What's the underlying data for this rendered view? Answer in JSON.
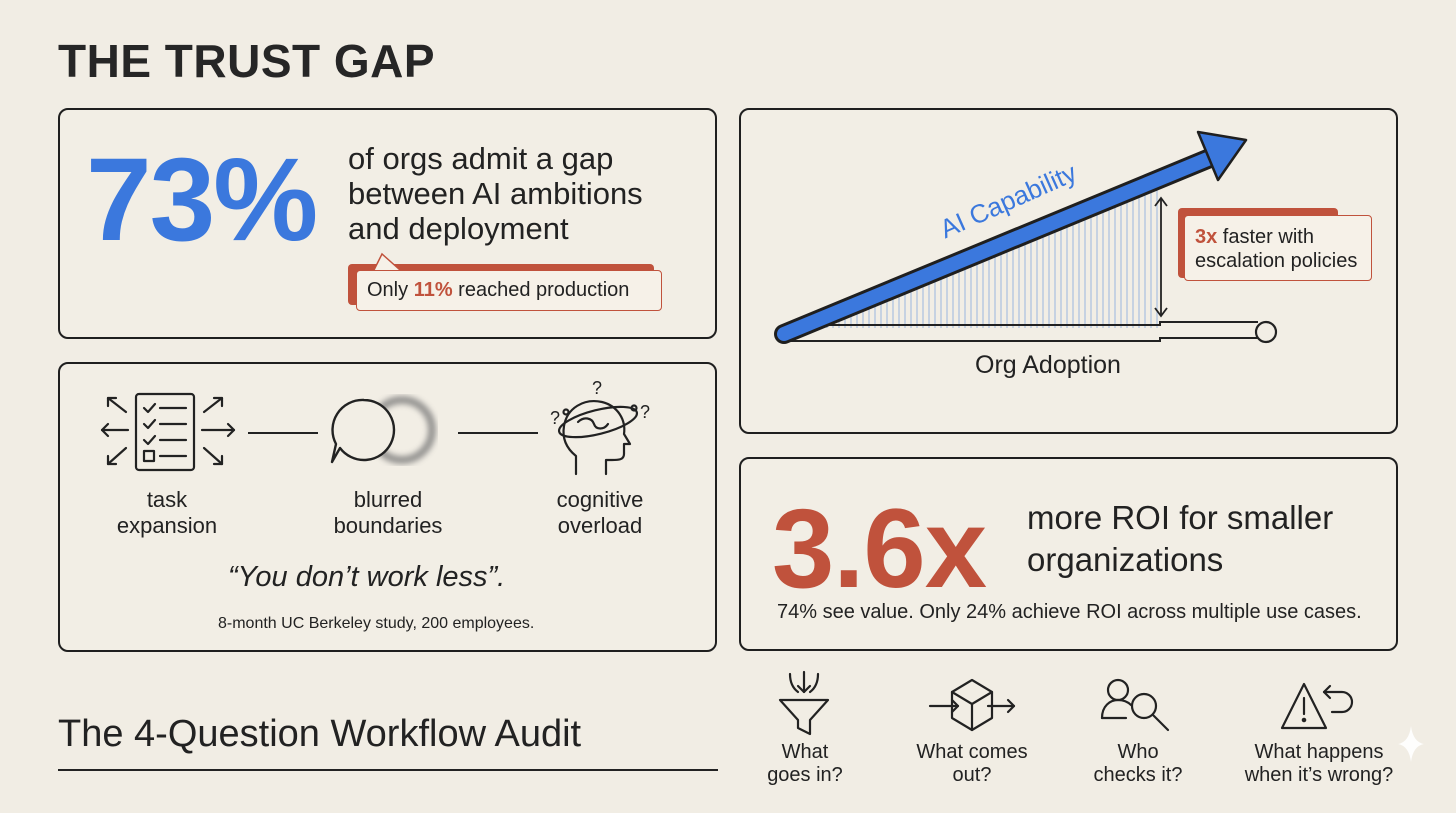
{
  "title": "THE TRUST GAP",
  "gap_card": {
    "stat": "73%",
    "description": "of orgs admit a gap between AI ambitions and deployment",
    "callout_prefix": "Only ",
    "callout_highlight": "11%",
    "callout_suffix": " reached production"
  },
  "overload_card": {
    "items": [
      {
        "label": "task expansion",
        "icon": "task-list-expansion-icon"
      },
      {
        "label": "blurred boundaries",
        "icon": "blurred-circles-icon"
      },
      {
        "label": "cognitive overload",
        "icon": "confused-head-icon"
      }
    ],
    "quote": "“You don’t work less”.",
    "source": "8-month UC Berkeley study, 200 employees."
  },
  "capability_card": {
    "capability_label": "AI Capability",
    "adoption_label": "Org Adoption",
    "callout_highlight": "3x",
    "callout_rest_line1": " faster with",
    "callout_line2": "escalation policies"
  },
  "roi_card": {
    "stat": "3.6x",
    "description": "more ROI for smaller organizations",
    "note": "74% see value. Only 24% achieve ROI across multiple use cases."
  },
  "audit": {
    "title": "The 4-Question Workflow Audit",
    "questions": [
      {
        "label": "What goes in?",
        "icon": "funnel-icon"
      },
      {
        "label": "What comes out?",
        "icon": "box-output-icon"
      },
      {
        "label": "Who checks it?",
        "icon": "person-search-icon"
      },
      {
        "label": "What happens when it’s wrong?",
        "icon": "warning-undo-icon"
      }
    ]
  },
  "colors": {
    "blue": "#3b78dd",
    "red": "#c0523c",
    "ink": "#1f1f1f",
    "background": "#f1ede4"
  }
}
